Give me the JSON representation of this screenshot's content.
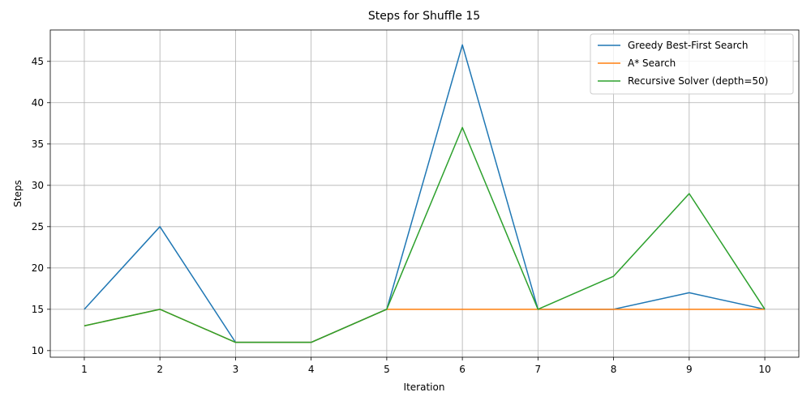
{
  "chart_data": {
    "type": "line",
    "title": "Steps for Shuffle 15",
    "xlabel": "Iteration",
    "ylabel": "Steps",
    "x": [
      1,
      2,
      3,
      4,
      5,
      6,
      7,
      8,
      9,
      10
    ],
    "xlim": [
      0.55,
      10.45
    ],
    "ylim": [
      9.2,
      48.8
    ],
    "xticks": [
      1,
      2,
      3,
      4,
      5,
      6,
      7,
      8,
      9,
      10
    ],
    "yticks": [
      10,
      15,
      20,
      25,
      30,
      35,
      40,
      45
    ],
    "grid": true,
    "legend_position": "top-right",
    "series": [
      {
        "name": "Greedy Best-First Search",
        "color": "#1f77b4",
        "values": [
          15,
          25,
          11,
          11,
          15,
          47,
          15,
          15,
          17,
          15
        ]
      },
      {
        "name": "A* Search",
        "color": "#ff7f0e",
        "values": [
          13,
          15,
          11,
          11,
          15,
          15,
          15,
          15,
          15,
          15
        ]
      },
      {
        "name": "Recursive Solver (depth=50)",
        "color": "#2ca02c",
        "values": [
          13,
          15,
          11,
          11,
          15,
          37,
          15,
          19,
          29,
          15
        ]
      }
    ]
  }
}
